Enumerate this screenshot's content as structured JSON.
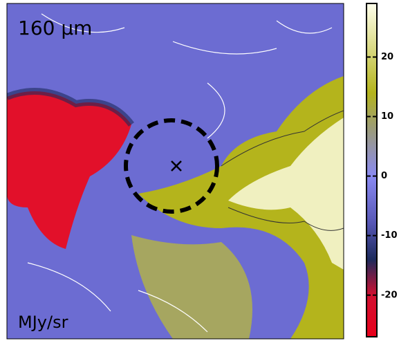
{
  "chart_data": {
    "type": "image",
    "title": "160 μm",
    "colorbar_label": "MJy/sr",
    "clim": [
      -27,
      29
    ],
    "cticks": [
      -20,
      -10,
      0,
      10,
      20
    ],
    "colormap": {
      "stops": [
        -27,
        -20,
        -14,
        -8,
        0,
        8,
        14,
        29
      ],
      "colors": [
        "#e8001a",
        "#d01030",
        "#1c2a5c",
        "#5656b4",
        "#8a8af2",
        "#9c9c78",
        "#b4b41c",
        "#ffffec"
      ]
    }
  }
}
